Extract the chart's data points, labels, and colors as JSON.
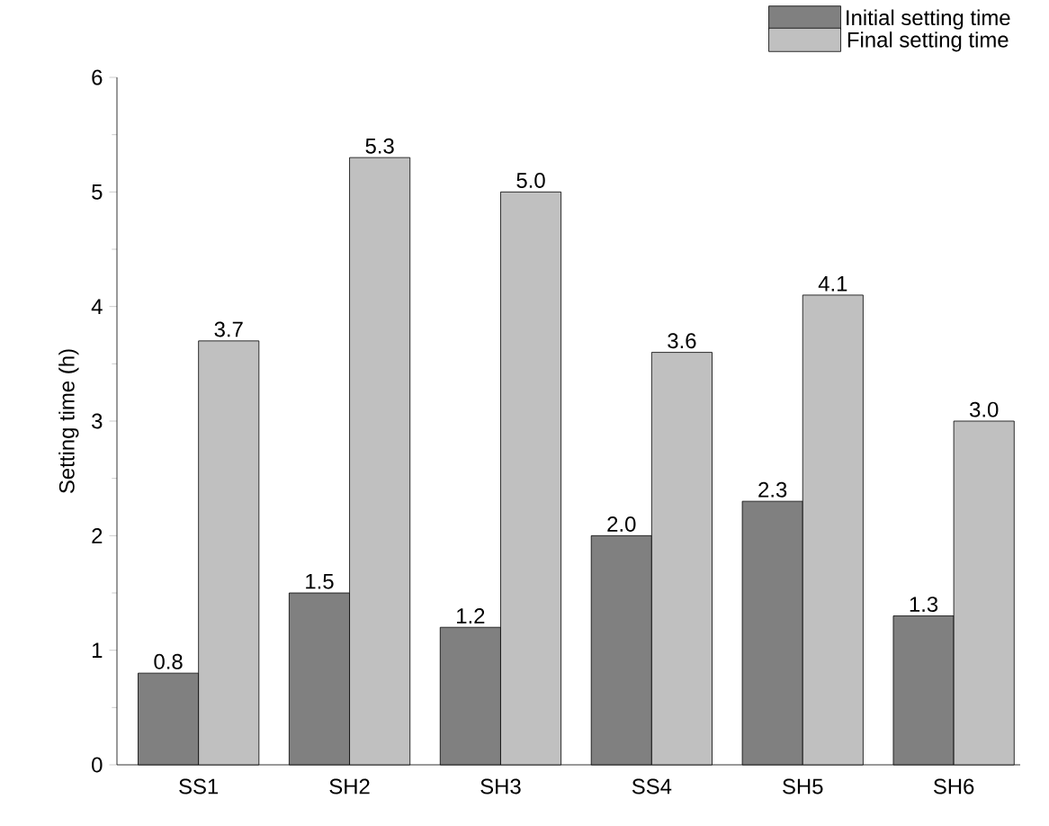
{
  "chart_data": {
    "type": "bar",
    "ylabel": "Setting time (h)",
    "categories": [
      "SS1",
      "SH2",
      "SH3",
      "SS4",
      "SH5",
      "SH6"
    ],
    "series": [
      {
        "name": "Initial setting time",
        "color": "#808080",
        "values": [
          0.8,
          1.5,
          1.2,
          2.0,
          2.3,
          1.3
        ],
        "value_labels": [
          "0.8",
          "1.5",
          "1.2",
          "2.0",
          "2.3",
          "1.3"
        ]
      },
      {
        "name": "Final setting time",
        "color": "#c0c0c0",
        "values": [
          3.7,
          5.3,
          5.0,
          3.6,
          4.1,
          3.0
        ],
        "value_labels": [
          "3.7",
          "5.3",
          "5.0",
          "3.6",
          "4.1",
          "3.0"
        ]
      }
    ],
    "ylim": [
      0,
      6
    ],
    "yticks": [
      0,
      1,
      2,
      3,
      4,
      5,
      6
    ],
    "legend": "top right",
    "grid": false
  }
}
